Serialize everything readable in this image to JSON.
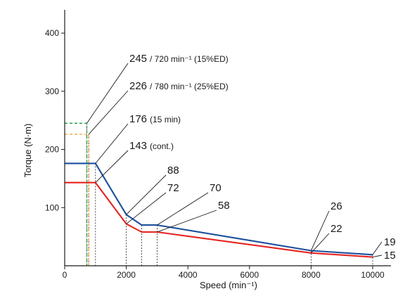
{
  "chart_data": {
    "type": "line",
    "xlabel": "Speed (min⁻¹)",
    "ylabel": "Torque (N·m)",
    "xlim": [
      0,
      10000
    ],
    "ylim": [
      0,
      440
    ],
    "x_ticks": [
      "0",
      "2000",
      "4000",
      "6000",
      "8000",
      "10000"
    ],
    "y_ticks": [
      "100",
      "200",
      "300",
      "400"
    ],
    "grid": false,
    "legend": "none",
    "series": [
      {
        "style": "dashed",
        "color": "#1f9a4a",
        "points": [
          [
            0,
            245
          ],
          [
            720,
            245
          ],
          [
            720,
            0
          ]
        ]
      },
      {
        "style": "dashed",
        "color": "#f0a030",
        "points": [
          [
            0,
            226
          ],
          [
            780,
            226
          ],
          [
            780,
            0
          ]
        ]
      },
      {
        "style": "solid",
        "color": "#1b4f9c",
        "points": [
          [
            0,
            176
          ],
          [
            1000,
            176
          ],
          [
            2000,
            88
          ],
          [
            2500,
            70
          ],
          [
            3000,
            70
          ],
          [
            8000,
            26
          ],
          [
            10000,
            19
          ]
        ]
      },
      {
        "style": "solid",
        "color": "#e52420",
        "points": [
          [
            0,
            143
          ],
          [
            1000,
            143
          ],
          [
            2000,
            72
          ],
          [
            2500,
            58
          ],
          [
            3000,
            58
          ],
          [
            8000,
            22
          ],
          [
            10000,
            15
          ]
        ]
      }
    ],
    "dotted_verticals": [
      720,
      780,
      1000,
      2000,
      2500,
      3000,
      8000,
      10000
    ],
    "annotations": [
      {
        "value": "245",
        "suffix": "/ 720 min⁻¹ (15%ED)",
        "at": [
          720,
          245
        ]
      },
      {
        "value": "226",
        "suffix": "/ 780 min⁻¹ (25%ED)",
        "at": [
          780,
          226
        ]
      },
      {
        "value": "176",
        "suffix": "(15 min)",
        "at": [
          1000,
          176
        ]
      },
      {
        "value": "143",
        "suffix": "(cont.)",
        "at": [
          1000,
          143
        ]
      },
      {
        "value": "88",
        "suffix": "",
        "at": [
          2000,
          88
        ]
      },
      {
        "value": "72",
        "suffix": "",
        "at": [
          2000,
          72
        ]
      },
      {
        "value": "70",
        "suffix": "",
        "at": [
          3000,
          70
        ]
      },
      {
        "value": "58",
        "suffix": "",
        "at": [
          3000,
          58
        ]
      },
      {
        "value": "26",
        "suffix": "",
        "at": [
          8000,
          26
        ]
      },
      {
        "value": "22",
        "suffix": "",
        "at": [
          8000,
          22
        ]
      },
      {
        "value": "19",
        "suffix": "",
        "at": [
          10000,
          19
        ]
      },
      {
        "value": "15",
        "suffix": "",
        "at": [
          10000,
          15
        ]
      }
    ]
  }
}
